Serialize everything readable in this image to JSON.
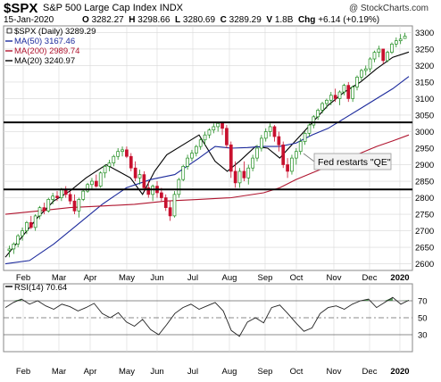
{
  "header": {
    "symbol": "$SPX",
    "name": "S&P 500 Large Cap Index",
    "exchange": "INDX",
    "credit": "@ StockCharts.com",
    "date": "15-Jan-2020",
    "open_label": "O",
    "open": "3282.27",
    "high_label": "H",
    "high": "3298.66",
    "low_label": "L",
    "low": "3280.69",
    "close_label": "C",
    "close": "3289.29",
    "volume_label": "V",
    "volume": "1.8B",
    "change_label": "Chg",
    "change": "+6.14 (+0.19%)"
  },
  "colors": {
    "price": "#000000",
    "ma50": "#1c2a9c",
    "ma200": "#b0152f",
    "ma20": "#000000",
    "up": "#1e8c1e",
    "down": "#c8102e",
    "annotation_box": "#f2f2f2",
    "grid": "#d8d8d8",
    "rsi_fill": "#2e7d32"
  },
  "chart_data": [
    {
      "type": "candlestick",
      "legend": [
        {
          "label": "$SPX (Daily)",
          "value": "3289.29"
        },
        {
          "label": "MA(50)",
          "value": "3167.46"
        },
        {
          "label": "MA(200)",
          "value": "2989.74"
        },
        {
          "label": "MA(20)",
          "value": "3240.97"
        }
      ],
      "y_ticks": [
        2600,
        2650,
        2700,
        2750,
        2800,
        2850,
        2900,
        2950,
        3000,
        3050,
        3100,
        3150,
        3200,
        3250,
        3300
      ],
      "ylim": [
        2580,
        3320
      ],
      "x_ticks": [
        "Feb",
        "Mar",
        "Apr",
        "May",
        "Jun",
        "Jul",
        "Aug",
        "Sep",
        "Oct",
        "Nov",
        "Dec",
        "2020"
      ],
      "horizontal_lines": [
        3028,
        2825
      ],
      "annotation": "Fed restarts \"QE\"",
      "series": [
        {
          "name": "MA(20)",
          "x": [
            0.0,
            0.04,
            0.08,
            0.12,
            0.16,
            0.2,
            0.25,
            0.28,
            0.31,
            0.34,
            0.37,
            0.4,
            0.44,
            0.48,
            0.52,
            0.55,
            0.58,
            0.62,
            0.65,
            0.68,
            0.71,
            0.74,
            0.77,
            0.8,
            0.84,
            0.88,
            0.92,
            0.96,
            1.0
          ],
          "y": [
            2620,
            2680,
            2740,
            2790,
            2820,
            2860,
            2900,
            2880,
            2860,
            2810,
            2880,
            2930,
            2960,
            2990,
            2910,
            2880,
            2910,
            2955,
            2950,
            2920,
            2960,
            3000,
            3040,
            3080,
            3120,
            3150,
            3190,
            3225,
            3241
          ]
        },
        {
          "name": "MA(50)",
          "x": [
            0.0,
            0.06,
            0.12,
            0.18,
            0.24,
            0.3,
            0.36,
            0.42,
            0.48,
            0.52,
            0.56,
            0.6,
            0.64,
            0.68,
            0.72,
            0.76,
            0.8,
            0.84,
            0.88,
            0.92,
            0.96,
            1.0
          ],
          "y": [
            2600,
            2610,
            2660,
            2720,
            2780,
            2830,
            2855,
            2870,
            2920,
            2955,
            2950,
            2952,
            2955,
            2955,
            2965,
            2990,
            3010,
            3040,
            3070,
            3100,
            3130,
            3167
          ]
        },
        {
          "name": "MA(200)",
          "x": [
            0.0,
            0.08,
            0.16,
            0.24,
            0.32,
            0.4,
            0.48,
            0.56,
            0.64,
            0.68,
            0.72,
            0.76,
            0.8,
            0.84,
            0.88,
            0.92,
            0.96,
            1.0
          ],
          "y": [
            2750,
            2760,
            2770,
            2775,
            2780,
            2790,
            2795,
            2800,
            2815,
            2830,
            2855,
            2875,
            2895,
            2915,
            2935,
            2955,
            2972,
            2990
          ]
        }
      ],
      "candles": [
        [
          2640,
          2655,
          2620,
          2645
        ],
        [
          2645,
          2665,
          2630,
          2660
        ],
        [
          2660,
          2690,
          2650,
          2685
        ],
        [
          2685,
          2710,
          2670,
          2700
        ],
        [
          2700,
          2730,
          2690,
          2725
        ],
        [
          2725,
          2745,
          2705,
          2710
        ],
        [
          2710,
          2750,
          2700,
          2745
        ],
        [
          2745,
          2775,
          2735,
          2770
        ],
        [
          2770,
          2785,
          2750,
          2760
        ],
        [
          2760,
          2800,
          2755,
          2795
        ],
        [
          2795,
          2815,
          2780,
          2805
        ],
        [
          2805,
          2820,
          2790,
          2800
        ],
        [
          2800,
          2830,
          2790,
          2825
        ],
        [
          2825,
          2835,
          2800,
          2810
        ],
        [
          2810,
          2820,
          2780,
          2790
        ],
        [
          2790,
          2810,
          2750,
          2760
        ],
        [
          2760,
          2800,
          2740,
          2795
        ],
        [
          2795,
          2825,
          2790,
          2820
        ],
        [
          2820,
          2845,
          2815,
          2840
        ],
        [
          2840,
          2860,
          2825,
          2850
        ],
        [
          2850,
          2870,
          2830,
          2835
        ],
        [
          2835,
          2880,
          2830,
          2875
        ],
        [
          2875,
          2900,
          2860,
          2895
        ],
        [
          2895,
          2915,
          2880,
          2905
        ],
        [
          2905,
          2930,
          2895,
          2925
        ],
        [
          2925,
          2950,
          2915,
          2940
        ],
        [
          2940,
          2955,
          2925,
          2945
        ],
        [
          2945,
          2955,
          2920,
          2925
        ],
        [
          2925,
          2935,
          2880,
          2890
        ],
        [
          2890,
          2910,
          2850,
          2860
        ],
        [
          2860,
          2885,
          2840,
          2870
        ],
        [
          2870,
          2880,
          2820,
          2830
        ],
        [
          2830,
          2850,
          2800,
          2810
        ],
        [
          2810,
          2840,
          2790,
          2835
        ],
        [
          2835,
          2850,
          2800,
          2815
        ],
        [
          2815,
          2830,
          2790,
          2800
        ],
        [
          2800,
          2810,
          2760,
          2770
        ],
        [
          2770,
          2790,
          2730,
          2745
        ],
        [
          2745,
          2820,
          2740,
          2810
        ],
        [
          2810,
          2860,
          2800,
          2855
        ],
        [
          2855,
          2900,
          2850,
          2895
        ],
        [
          2895,
          2930,
          2885,
          2920
        ],
        [
          2920,
          2945,
          2910,
          2935
        ],
        [
          2935,
          2960,
          2925,
          2955
        ],
        [
          2955,
          2980,
          2945,
          2975
        ],
        [
          2975,
          3000,
          2960,
          2990
        ],
        [
          2990,
          3010,
          2980,
          3005
        ],
        [
          3005,
          3025,
          2995,
          3015
        ],
        [
          3015,
          3030,
          3000,
          3025
        ],
        [
          3025,
          3030,
          2990,
          3010
        ],
        [
          3010,
          3020,
          2950,
          2960
        ],
        [
          2960,
          2970,
          2860,
          2880
        ],
        [
          2880,
          2910,
          2830,
          2845
        ],
        [
          2845,
          2890,
          2830,
          2880
        ],
        [
          2880,
          2910,
          2850,
          2860
        ],
        [
          2860,
          2900,
          2840,
          2890
        ],
        [
          2890,
          2930,
          2880,
          2920
        ],
        [
          2920,
          2960,
          2910,
          2950
        ],
        [
          2950,
          2990,
          2940,
          2980
        ],
        [
          2980,
          3010,
          2970,
          3000
        ],
        [
          3000,
          3025,
          2985,
          3015
        ],
        [
          3015,
          3020,
          2970,
          2985
        ],
        [
          2985,
          3000,
          2940,
          2960
        ],
        [
          2960,
          2970,
          2890,
          2900
        ],
        [
          2900,
          2920,
          2860,
          2880
        ],
        [
          2880,
          2930,
          2870,
          2920
        ],
        [
          2920,
          2950,
          2900,
          2940
        ],
        [
          2940,
          2980,
          2930,
          2970
        ],
        [
          2970,
          3000,
          2960,
          2995
        ],
        [
          2995,
          3025,
          2985,
          3020
        ],
        [
          3020,
          3050,
          3010,
          3045
        ],
        [
          3045,
          3070,
          3035,
          3065
        ],
        [
          3065,
          3090,
          3055,
          3085
        ],
        [
          3085,
          3100,
          3070,
          3095
        ],
        [
          3095,
          3120,
          3080,
          3110
        ],
        [
          3110,
          3130,
          3090,
          3100
        ],
        [
          3100,
          3125,
          3080,
          3120
        ],
        [
          3120,
          3145,
          3110,
          3140
        ],
        [
          3140,
          3150,
          3090,
          3100
        ],
        [
          3100,
          3140,
          3090,
          3135
        ],
        [
          3135,
          3170,
          3125,
          3165
        ],
        [
          3165,
          3190,
          3155,
          3185
        ],
        [
          3185,
          3200,
          3170,
          3190
        ],
        [
          3190,
          3225,
          3180,
          3220
        ],
        [
          3220,
          3245,
          3210,
          3240
        ],
        [
          3240,
          3260,
          3225,
          3250
        ],
        [
          3250,
          3250,
          3205,
          3215
        ],
        [
          3215,
          3245,
          3210,
          3240
        ],
        [
          3240,
          3270,
          3235,
          3265
        ],
        [
          3265,
          3285,
          3255,
          3275
        ],
        [
          3275,
          3295,
          3265,
          3280
        ],
        [
          3282,
          3299,
          3281,
          3289
        ]
      ]
    },
    {
      "type": "line",
      "legend": [
        {
          "label": "RSI(14)",
          "value": "70.64"
        }
      ],
      "y_ticks": [
        30,
        50,
        70
      ],
      "ylim": [
        10,
        90
      ],
      "reference_lines": [
        30,
        50,
        70
      ],
      "x_ticks": [
        "Feb",
        "Mar",
        "Apr",
        "May",
        "Jun",
        "Jul",
        "Aug",
        "Sep",
        "Oct",
        "Nov",
        "Dec",
        "2020"
      ],
      "series": [
        {
          "name": "RSI(14)",
          "x": [
            0.0,
            0.02,
            0.04,
            0.06,
            0.08,
            0.1,
            0.12,
            0.14,
            0.16,
            0.18,
            0.2,
            0.22,
            0.24,
            0.26,
            0.28,
            0.3,
            0.32,
            0.34,
            0.36,
            0.38,
            0.4,
            0.42,
            0.44,
            0.46,
            0.48,
            0.5,
            0.52,
            0.54,
            0.56,
            0.58,
            0.6,
            0.62,
            0.64,
            0.66,
            0.68,
            0.7,
            0.72,
            0.74,
            0.76,
            0.78,
            0.8,
            0.82,
            0.84,
            0.86,
            0.88,
            0.9,
            0.92,
            0.94,
            0.96,
            0.98,
            1.0
          ],
          "y": [
            62,
            68,
            72,
            66,
            70,
            64,
            60,
            66,
            63,
            58,
            62,
            67,
            55,
            50,
            56,
            45,
            40,
            48,
            36,
            30,
            42,
            55,
            62,
            66,
            60,
            64,
            68,
            58,
            35,
            28,
            45,
            50,
            44,
            62,
            65,
            55,
            44,
            34,
            38,
            55,
            62,
            64,
            60,
            66,
            70,
            72,
            62,
            68,
            74,
            66,
            70.64
          ]
        }
      ]
    }
  ]
}
